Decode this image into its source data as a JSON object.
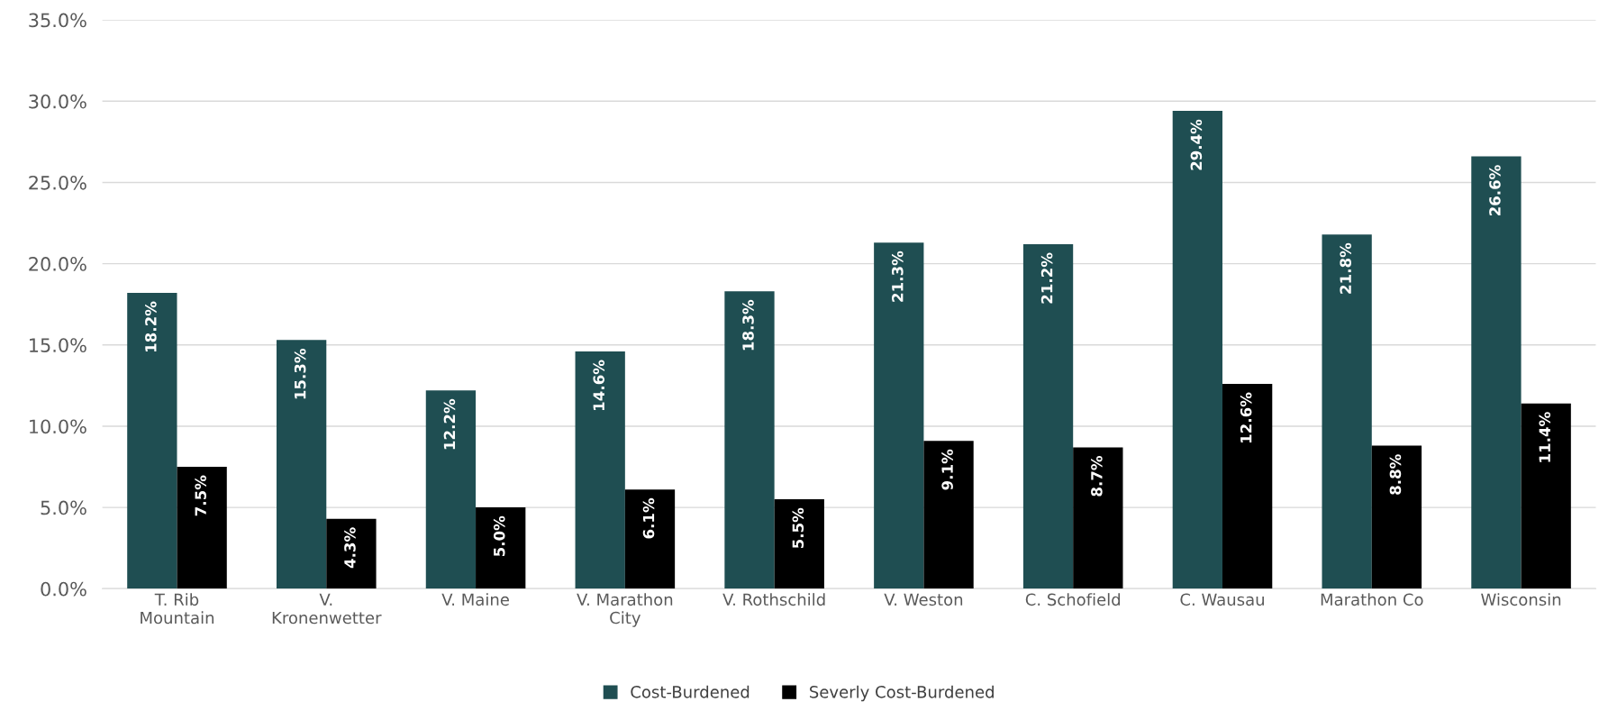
{
  "chart_data": {
    "type": "bar",
    "categories": [
      "T. Rib\nMountain",
      "V.\nKronenwetter",
      "V. Maine",
      "V. Marathon\nCity",
      "V. Rothschild",
      "V. Weston",
      "C. Schofield",
      "C. Wausau",
      "Marathon Co",
      "Wisconsin"
    ],
    "series": [
      {
        "name": "Cost-Burdened",
        "color": "#1f4e52",
        "values": [
          18.2,
          15.3,
          12.2,
          14.6,
          18.3,
          21.3,
          21.2,
          29.4,
          21.8,
          26.6
        ],
        "value_labels": [
          "18.2%",
          "15.3%",
          "12.2%",
          "14.6%",
          "18.3%",
          "21.3%",
          "21.2%",
          "29.4%",
          "21.8%",
          "26.6%"
        ]
      },
      {
        "name": "Severly Cost-Burdened",
        "color": "#000000",
        "values": [
          7.5,
          4.3,
          5.0,
          6.1,
          5.5,
          9.1,
          8.7,
          12.6,
          8.8,
          11.4
        ],
        "value_labels": [
          "7.5%",
          "4.3%",
          "5.0%",
          "6.1%",
          "5.5%",
          "9.1%",
          "8.7%",
          "12.6%",
          "8.8%",
          "11.4%"
        ]
      }
    ],
    "ylim": [
      0,
      35
    ],
    "yticks": [
      {
        "value": 0,
        "label": "0.0%"
      },
      {
        "value": 5,
        "label": "5.0%"
      },
      {
        "value": 10,
        "label": "10.0%"
      },
      {
        "value": 15,
        "label": "15.0%"
      },
      {
        "value": 20,
        "label": "20.0%"
      },
      {
        "value": 25,
        "label": "25.0%"
      },
      {
        "value": 30,
        "label": "30.0%"
      },
      {
        "value": 35,
        "label": "35.0%"
      }
    ],
    "grid": "y",
    "legend": "bottom"
  }
}
